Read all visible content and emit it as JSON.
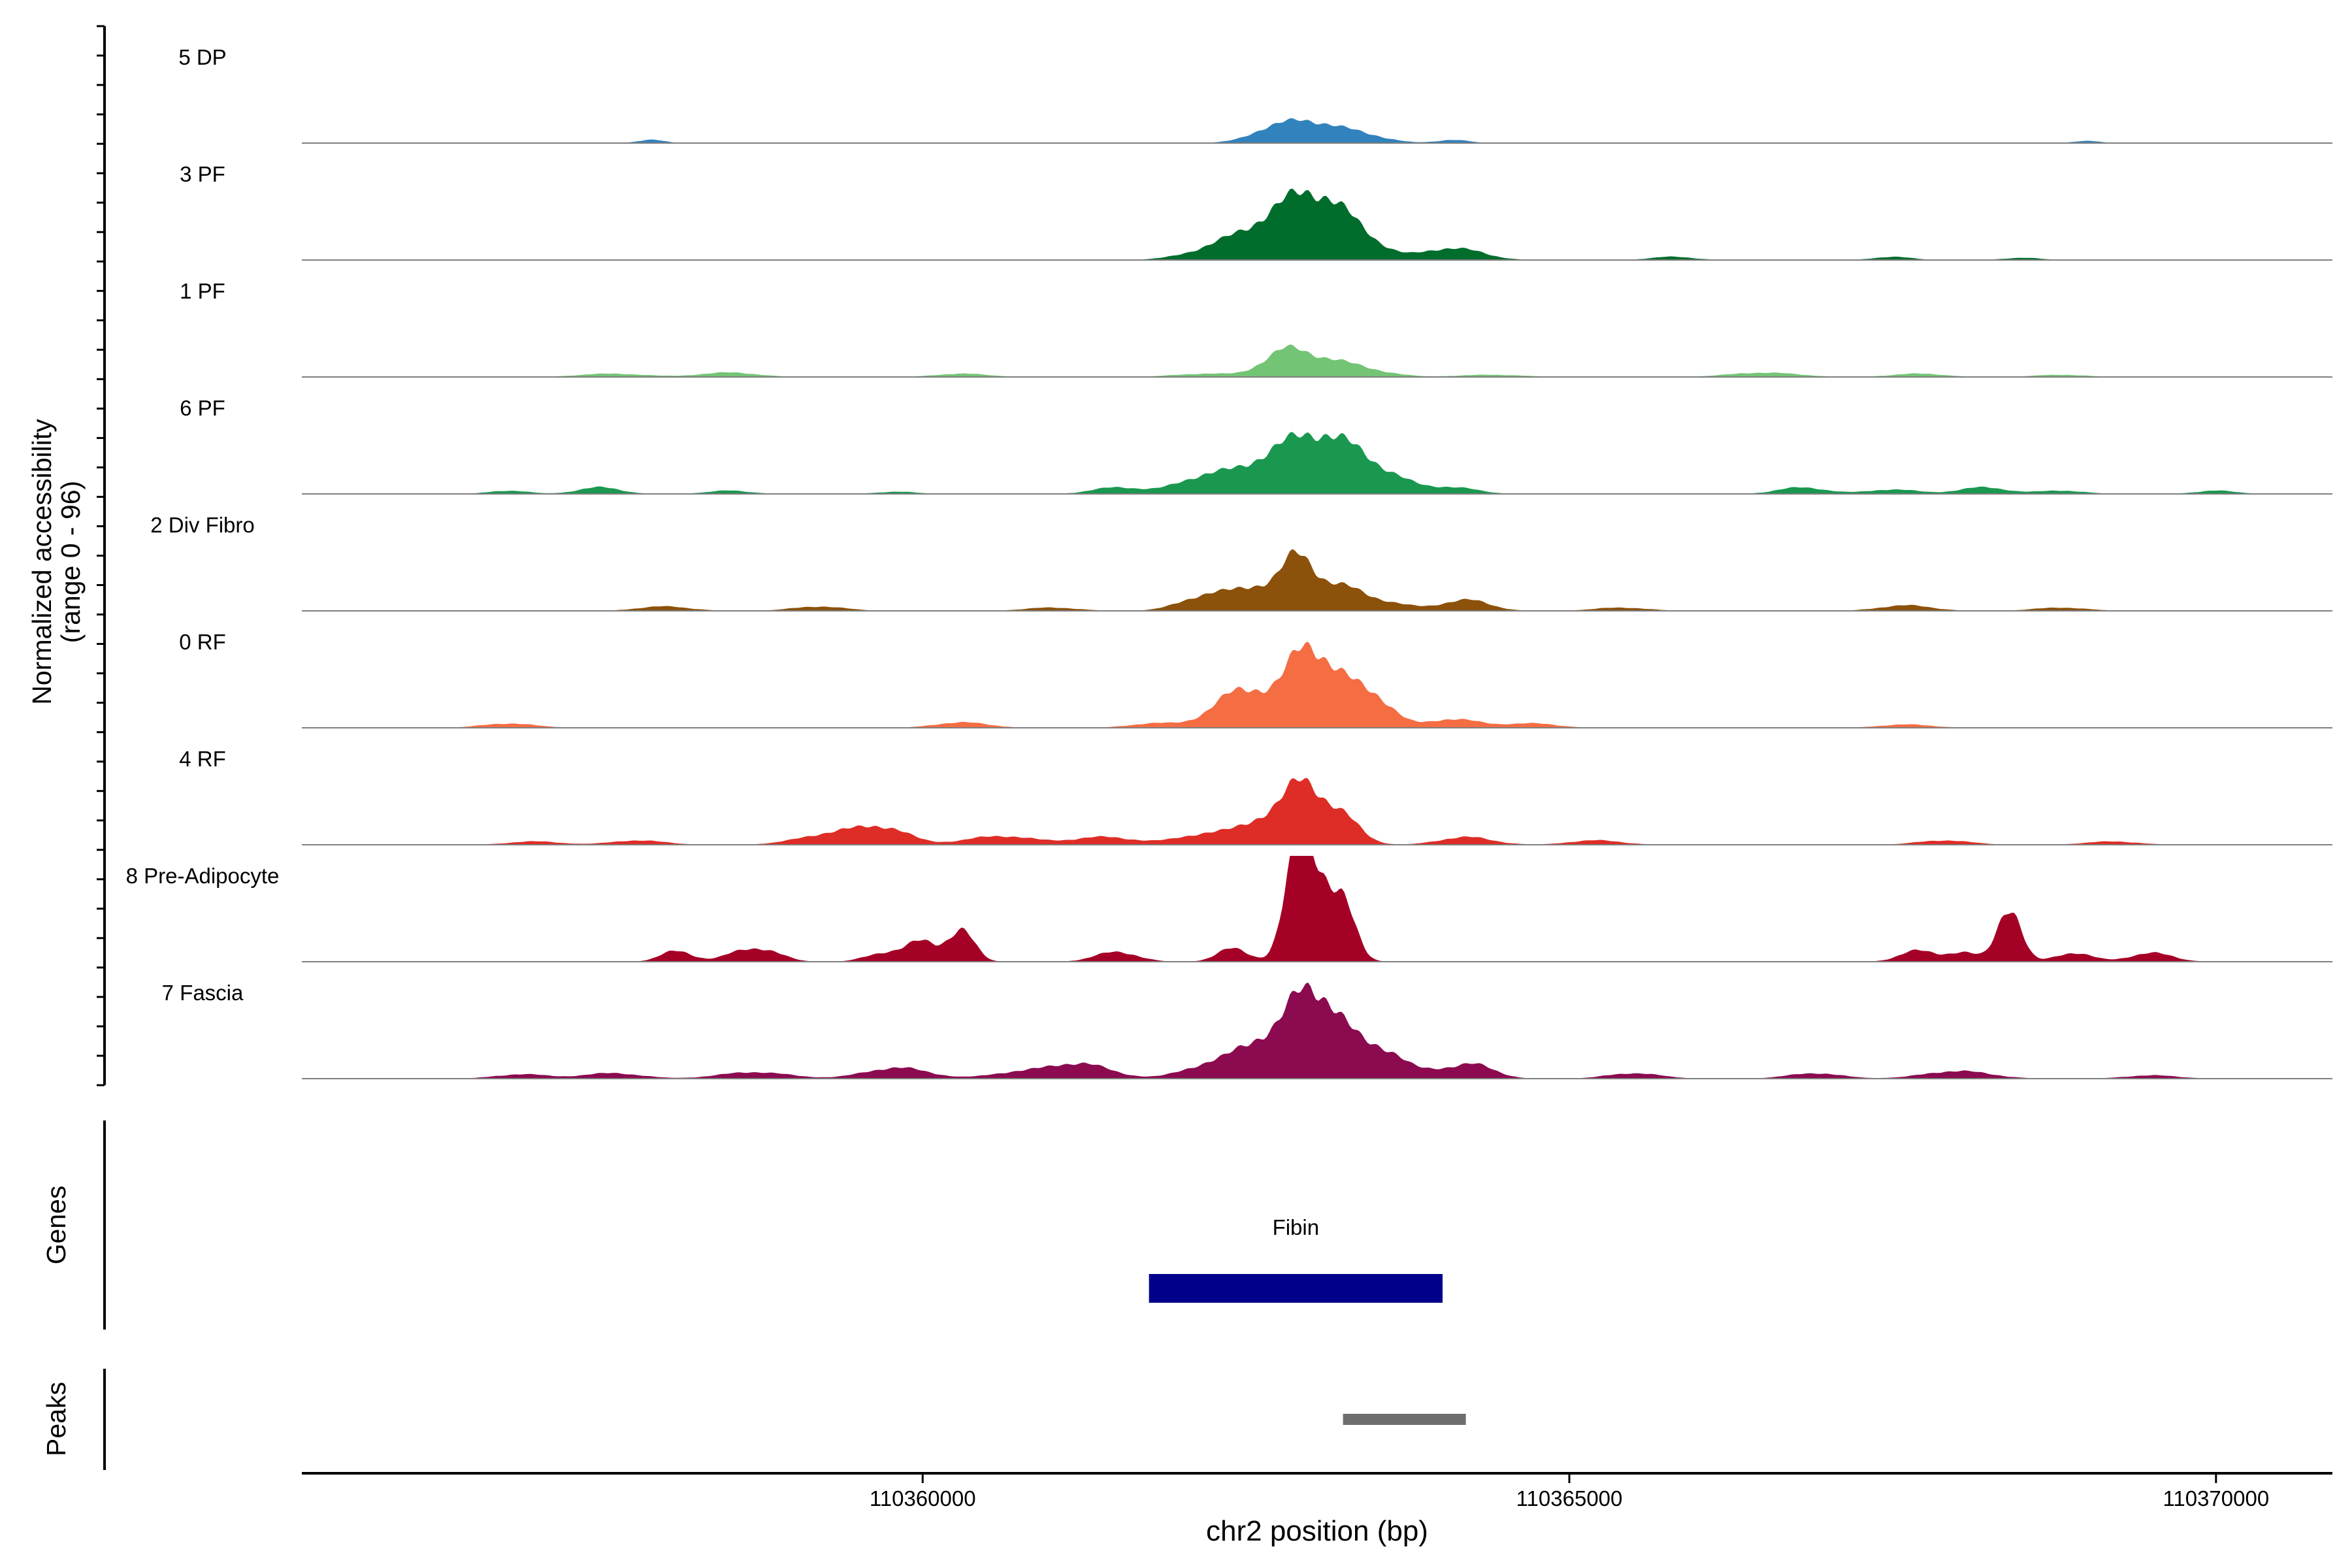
{
  "chart_data": {
    "type": "area",
    "ylabel": "Normalized accessibility",
    "ylabel_range": "(range 0 - 96)",
    "ylim": [
      0,
      96
    ],
    "xlabel": "chr2 position (bp)",
    "xlim": [
      110355200,
      110370900
    ],
    "x_ticks": [
      110360000,
      110365000,
      110370000
    ],
    "x_tick_labels": [
      "110360000",
      "110365000",
      "110370000"
    ],
    "tracks": [
      {
        "name": "5 DP",
        "color": "#3182bd",
        "peaks": [
          [
            110357900,
            3,
            100
          ],
          [
            110362620,
            2,
            110
          ],
          [
            110362780,
            9,
            220
          ],
          [
            110363050,
            15,
            260
          ],
          [
            110363450,
            4,
            180
          ],
          [
            110364100,
            3,
            120
          ],
          [
            110369000,
            2,
            100
          ]
        ]
      },
      {
        "name": "3 PF",
        "color": "#006d2c",
        "peaks": [
          [
            110362300,
            7,
            260
          ],
          [
            110362650,
            20,
            300
          ],
          [
            110362900,
            32,
            220
          ],
          [
            110363150,
            28,
            200
          ],
          [
            110363400,
            14,
            200
          ],
          [
            110364100,
            11,
            220
          ],
          [
            110365800,
            3,
            160
          ],
          [
            110367500,
            3,
            140
          ],
          [
            110368500,
            2,
            140
          ]
        ]
      },
      {
        "name": "1 PF",
        "color": "#74c476",
        "peaks": [
          [
            110357600,
            3,
            250
          ],
          [
            110358500,
            4,
            220
          ],
          [
            110360300,
            3,
            200
          ],
          [
            110362200,
            3,
            250
          ],
          [
            110362780,
            18,
            160
          ],
          [
            110363050,
            14,
            220
          ],
          [
            110363400,
            6,
            220
          ],
          [
            110364400,
            2,
            250
          ],
          [
            110366500,
            4,
            260
          ],
          [
            110367700,
            3,
            200
          ],
          [
            110368800,
            2,
            200
          ]
        ]
      },
      {
        "name": "6 PF",
        "color": "#1a9850",
        "peaks": [
          [
            110356800,
            3,
            150
          ],
          [
            110357500,
            6,
            160
          ],
          [
            110358500,
            3,
            160
          ],
          [
            110359800,
            2,
            150
          ],
          [
            110361500,
            6,
            180
          ],
          [
            110362200,
            16,
            230
          ],
          [
            110362700,
            26,
            230
          ],
          [
            110363050,
            40,
            230
          ],
          [
            110363350,
            22,
            200
          ],
          [
            110363650,
            10,
            180
          ],
          [
            110364100,
            6,
            180
          ],
          [
            110366800,
            6,
            180
          ],
          [
            110367500,
            4,
            200
          ],
          [
            110368200,
            6,
            180
          ],
          [
            110368800,
            3,
            180
          ],
          [
            110370000,
            3,
            150
          ]
        ]
      },
      {
        "name": "2 Div Fibro",
        "color": "#8c510a",
        "peaks": [
          [
            110358000,
            4,
            200
          ],
          [
            110359200,
            4,
            200
          ],
          [
            110361000,
            3,
            200
          ],
          [
            110362200,
            14,
            200
          ],
          [
            110362600,
            20,
            180
          ],
          [
            110362900,
            40,
            120
          ],
          [
            110363200,
            22,
            200
          ],
          [
            110363600,
            6,
            200
          ],
          [
            110364200,
            10,
            180
          ],
          [
            110365400,
            3,
            200
          ],
          [
            110367600,
            5,
            200
          ],
          [
            110368800,
            3,
            200
          ]
        ]
      },
      {
        "name": "0 RF",
        "color": "#f46d43",
        "peaks": [
          [
            110356800,
            4,
            200
          ],
          [
            110360300,
            5,
            200
          ],
          [
            110361800,
            4,
            200
          ],
          [
            110362400,
            18,
            200
          ],
          [
            110362600,
            22,
            220
          ],
          [
            110362950,
            56,
            140
          ],
          [
            110363200,
            38,
            170
          ],
          [
            110363500,
            24,
            150
          ],
          [
            110364100,
            8,
            200
          ],
          [
            110364700,
            4,
            200
          ],
          [
            110367600,
            3,
            200
          ]
        ]
      },
      {
        "name": "4 RF",
        "color": "#de2d26",
        "peaks": [
          [
            110357000,
            3,
            200
          ],
          [
            110357800,
            4,
            200
          ],
          [
            110359300,
            10,
            250
          ],
          [
            110359700,
            14,
            200
          ],
          [
            110360600,
            8,
            250
          ],
          [
            110361400,
            7,
            250
          ],
          [
            110362200,
            10,
            220
          ],
          [
            110362650,
            22,
            180
          ],
          [
            110362950,
            52,
            140
          ],
          [
            110363250,
            24,
            140
          ],
          [
            110364200,
            7,
            200
          ],
          [
            110365200,
            4,
            200
          ],
          [
            110367900,
            4,
            200
          ],
          [
            110369200,
            3,
            200
          ]
        ]
      },
      {
        "name": "8 Pre-Adipocyte",
        "color": "#a50026",
        "peaks": [
          [
            110358100,
            10,
            120
          ],
          [
            110358600,
            8,
            140
          ],
          [
            110358800,
            8,
            140
          ],
          [
            110359700,
            8,
            140
          ],
          [
            110360000,
            18,
            120
          ],
          [
            110360300,
            28,
            100
          ],
          [
            110361500,
            9,
            160
          ],
          [
            110362400,
            12,
            120
          ],
          [
            110362900,
            96,
            100
          ],
          [
            110363050,
            60,
            100
          ],
          [
            110363250,
            50,
            100
          ],
          [
            110367700,
            10,
            140
          ],
          [
            110368050,
            8,
            120
          ],
          [
            110368400,
            50,
            90
          ],
          [
            110368900,
            8,
            140
          ],
          [
            110369500,
            8,
            160
          ]
        ]
      },
      {
        "name": "7 Fascia",
        "color": "#8b0a50",
        "peaks": [
          [
            110356900,
            4,
            200
          ],
          [
            110357600,
            5,
            220
          ],
          [
            110358700,
            6,
            260
          ],
          [
            110359800,
            10,
            240
          ],
          [
            110360700,
            5,
            200
          ],
          [
            110361200,
            14,
            240
          ],
          [
            110362200,
            12,
            200
          ],
          [
            110362600,
            32,
            180
          ],
          [
            110362950,
            65,
            150
          ],
          [
            110363200,
            42,
            170
          ],
          [
            110363550,
            24,
            160
          ],
          [
            110364000,
            8,
            200
          ],
          [
            110364300,
            10,
            150
          ],
          [
            110365500,
            5,
            200
          ],
          [
            110366900,
            5,
            200
          ],
          [
            110368000,
            7,
            250
          ],
          [
            110369500,
            3,
            200
          ]
        ]
      }
    ],
    "genes_label": "Genes",
    "genes": [
      {
        "name": "Fibin",
        "start": 110361750,
        "end": 110364020,
        "color": "#00008b"
      }
    ],
    "peaks_label": "Peaks",
    "peaks": [
      {
        "start": 110363250,
        "end": 110364200,
        "color": "#6e6e6e"
      }
    ],
    "grid": false
  }
}
